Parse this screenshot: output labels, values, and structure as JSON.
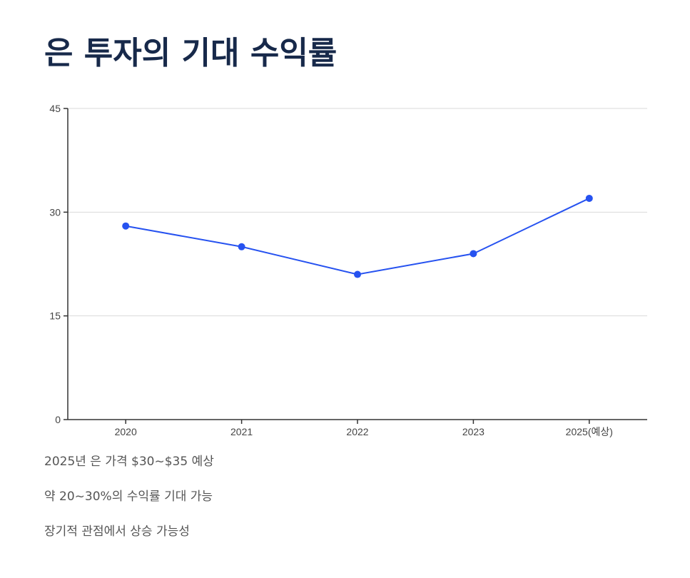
{
  "title": "은 투자의 기대 수익률",
  "chart_data": {
    "type": "line",
    "title": "",
    "xlabel": "",
    "ylabel": "",
    "categories": [
      "2020",
      "2021",
      "2022",
      "2023",
      "2025(예상)"
    ],
    "series": [
      {
        "values": [
          28,
          25,
          21,
          24,
          32
        ],
        "color": "#2652f0"
      }
    ],
    "ylim": [
      0,
      45
    ],
    "yticks": [
      0,
      15,
      30,
      45
    ],
    "grid": true,
    "markers": true
  },
  "notes": [
    "2025년 은 가격 $30~$35 예상",
    "약 20~30%의 수익률 기대 가능",
    "장기적 관점에서 상승 가능성"
  ],
  "colors": {
    "title": "#17294a",
    "line": "#2652f0",
    "grid": "#d9d9d9",
    "axis": "#333333",
    "note": "#555555"
  }
}
